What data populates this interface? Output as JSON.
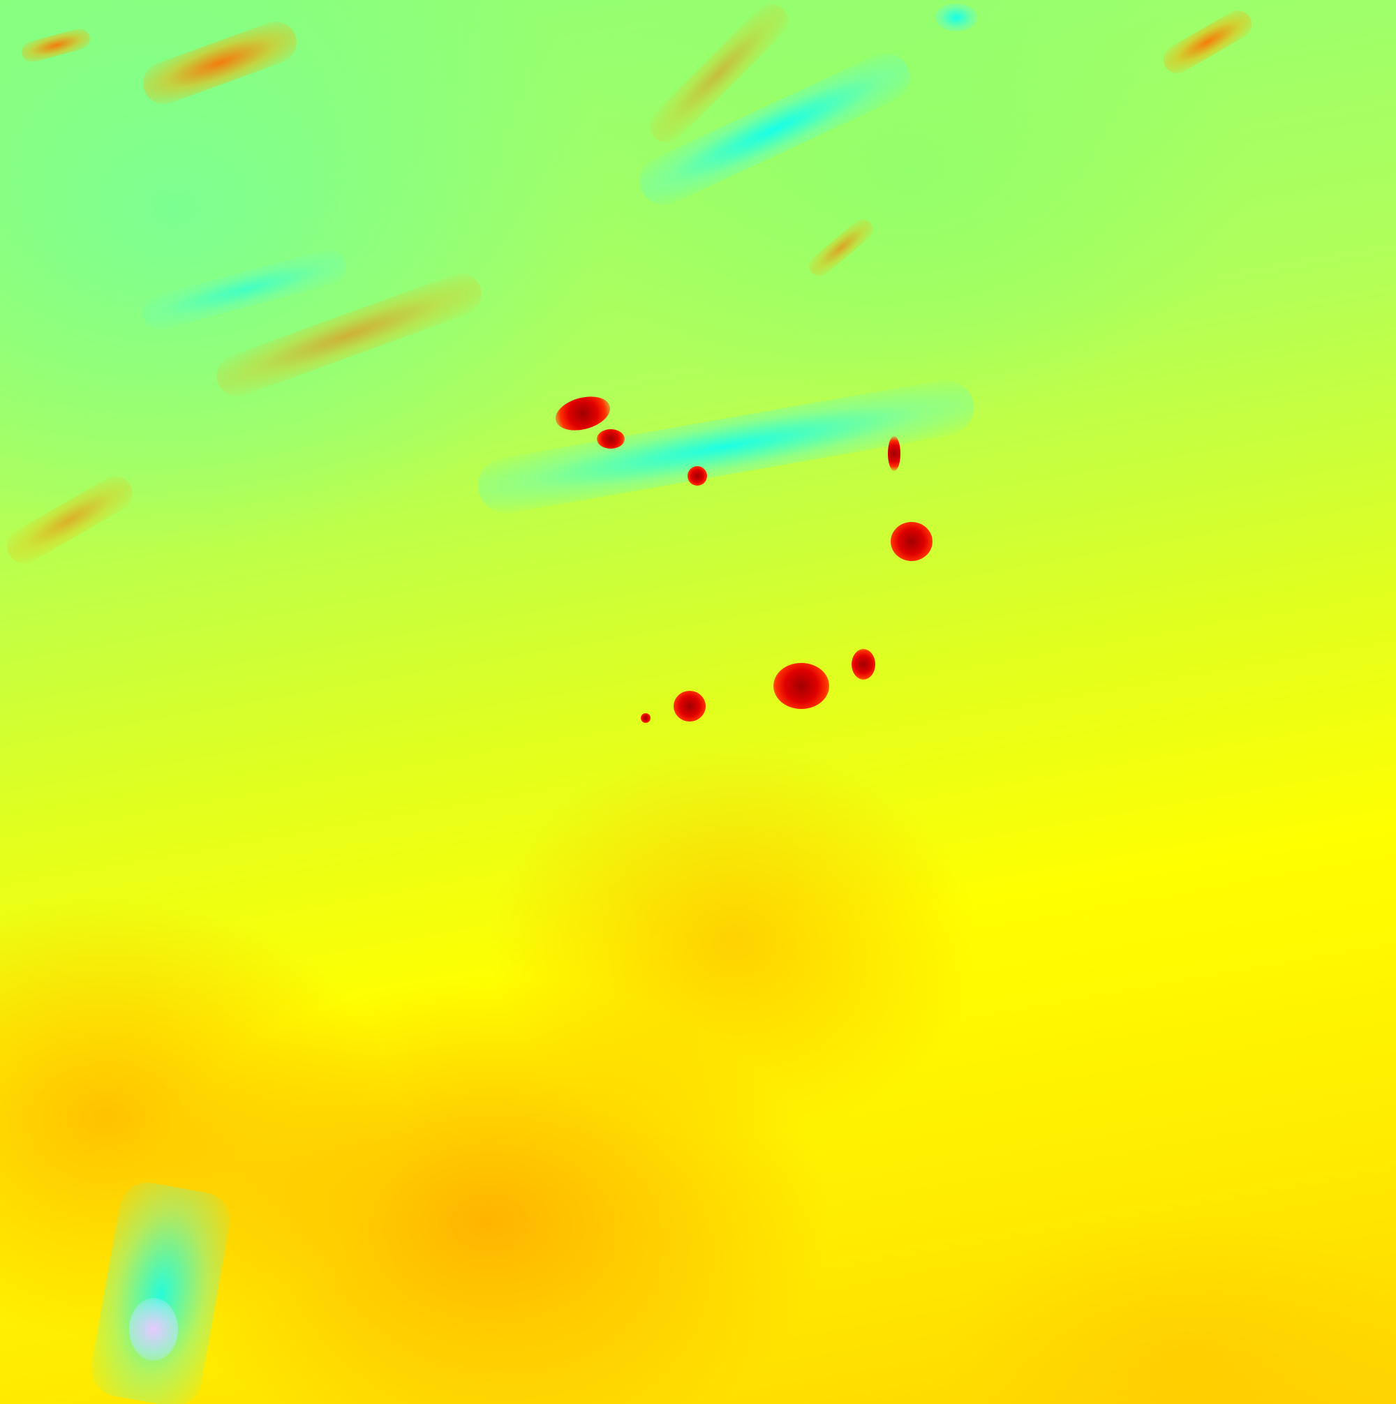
{
  "image": {
    "kind": "false-color thermal satellite imagery",
    "palette": {
      "cool": "#00ffff",
      "mild": "#8dff78",
      "warm": "#ffff00",
      "hotter": "#ffb000",
      "hot": "#e00000",
      "hottest": "#a00000"
    },
    "features": [
      "fire-hotspots",
      "cloud-streaks"
    ]
  }
}
